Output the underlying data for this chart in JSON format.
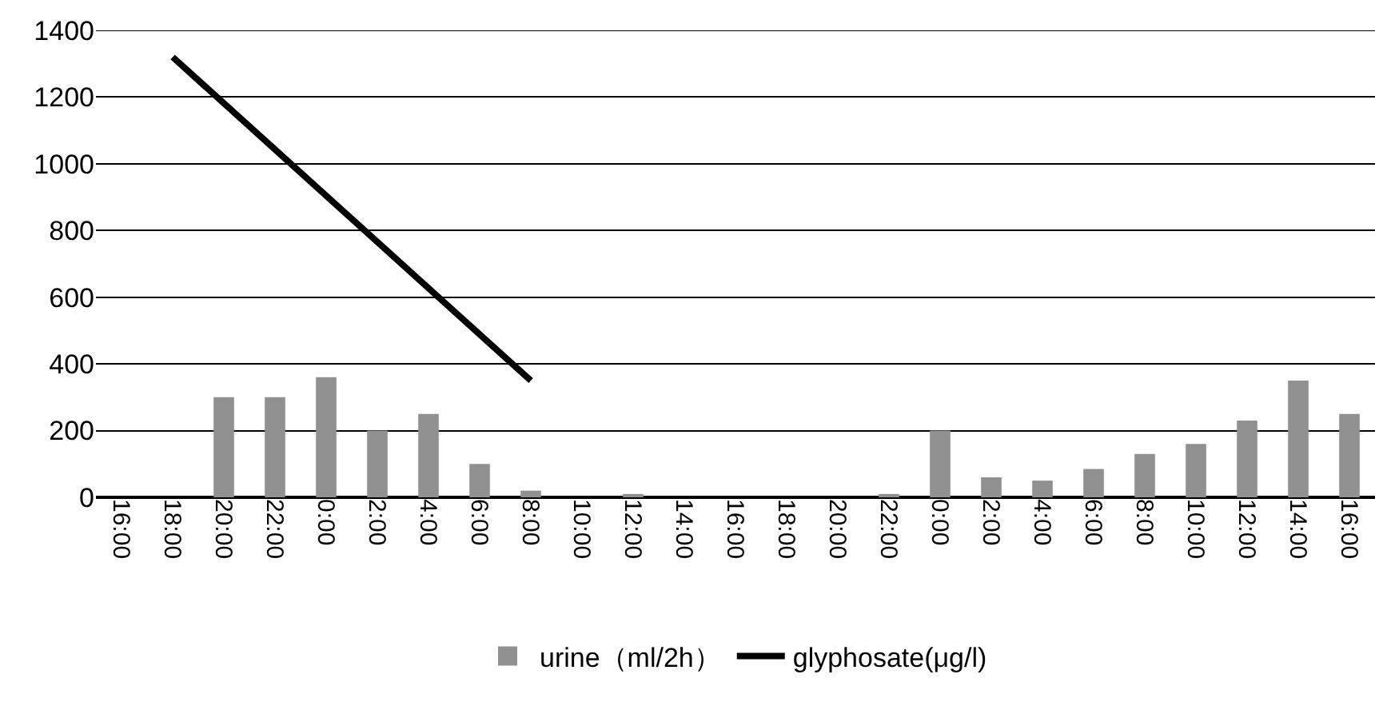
{
  "chart_data": {
    "type": "bar",
    "categories": [
      "16:00",
      "18:00",
      "20:00",
      "22:00",
      "0:00",
      "2:00",
      "4:00",
      "6:00",
      "8:00",
      "10:00",
      "12:00",
      "14:00",
      "16:00",
      "18:00",
      "20:00",
      "22:00",
      "0:00",
      "2:00",
      "4:00",
      "6:00",
      "8:00",
      "10:00",
      "12:00",
      "14:00",
      "16:00"
    ],
    "series": [
      {
        "name": "urine（ml/2h）",
        "color": "#909090",
        "values": [
          null,
          null,
          300,
          300,
          360,
          200,
          250,
          100,
          20,
          null,
          10,
          null,
          null,
          null,
          null,
          10,
          200,
          60,
          50,
          85,
          130,
          160,
          230,
          350,
          250
        ]
      },
      {
        "name": "glyphosate(μg/l)",
        "type": "line",
        "color": "#000000",
        "values": [
          null,
          1320,
          null,
          null,
          null,
          null,
          null,
          null,
          350,
          null,
          null,
          null,
          null,
          null,
          null,
          null,
          null,
          null,
          null,
          null,
          null,
          null,
          null,
          null,
          null
        ]
      }
    ],
    "ylim": [
      0,
      1400
    ],
    "yticks": [
      0,
      200,
      400,
      600,
      800,
      1000,
      1200,
      1400
    ],
    "grid": "y",
    "legend": "bottom",
    "marker": "none",
    "line_style": "solid"
  }
}
